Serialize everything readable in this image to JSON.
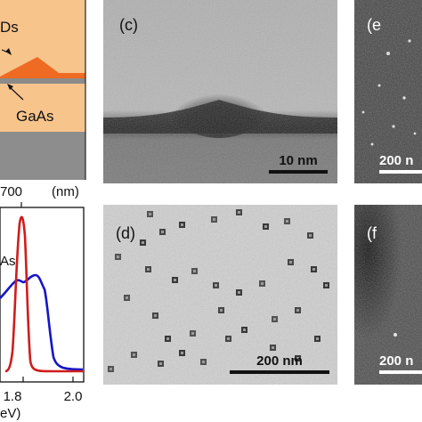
{
  "schematic": {
    "qd_label": "Ds",
    "substrate_label": "GaAs",
    "colors": {
      "barrier": "#f7c48c",
      "dot": "#ef6a22",
      "wetting": "#8b8b8b",
      "substrate": "#8d8d8d"
    }
  },
  "spectrum": {
    "top_axis": {
      "tick": "700",
      "unit": "(nm)"
    },
    "bottom_axis": {
      "ticks": [
        "1.8",
        "2.0"
      ],
      "unit": "eV)"
    },
    "label": "As",
    "series": [
      {
        "color": "#d01c1c"
      },
      {
        "color": "#1515c8"
      }
    ]
  },
  "panels": {
    "c": {
      "label": "(c)",
      "scale": "10 nm"
    },
    "d": {
      "label": "(d)",
      "scale": "200 nm"
    },
    "e": {
      "label": "(e",
      "scale": "200 n"
    },
    "f": {
      "label": "(f",
      "scale": "200 n"
    }
  }
}
